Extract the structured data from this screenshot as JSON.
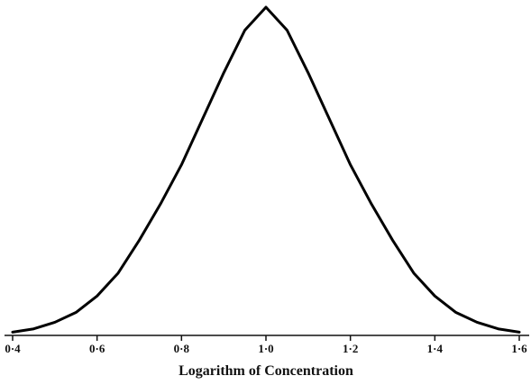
{
  "chart_data": {
    "type": "line",
    "xlabel": "Logarithm of Concentration",
    "x": [
      0.4,
      0.45,
      0.5,
      0.55,
      0.6,
      0.65,
      0.7,
      0.75,
      0.8,
      0.85,
      0.9,
      0.95,
      1.0,
      1.05,
      1.1,
      1.15,
      1.2,
      1.25,
      1.3,
      1.35,
      1.4,
      1.45,
      1.5,
      1.55,
      1.6
    ],
    "series": [
      {
        "color": "#000000",
        "values": [
          0.01,
          0.02,
          0.04,
          0.07,
          0.12,
          0.19,
          0.29,
          0.4,
          0.52,
          0.66,
          0.8,
          0.93,
          1.0,
          0.93,
          0.8,
          0.66,
          0.52,
          0.4,
          0.29,
          0.19,
          0.12,
          0.07,
          0.04,
          0.02,
          0.01
        ]
      }
    ],
    "xlim": [
      0.4,
      1.6
    ],
    "ylim": [
      0,
      1
    ],
    "xticks": [
      {
        "value": 0.4,
        "label": "0·4"
      },
      {
        "value": 0.6,
        "label": "0·6"
      },
      {
        "value": 0.8,
        "label": "0·8"
      },
      {
        "value": 1.0,
        "label": "1·0"
      },
      {
        "value": 1.2,
        "label": "1·2"
      },
      {
        "value": 1.4,
        "label": "1·4"
      },
      {
        "value": 1.6,
        "label": "1·6"
      }
    ]
  }
}
